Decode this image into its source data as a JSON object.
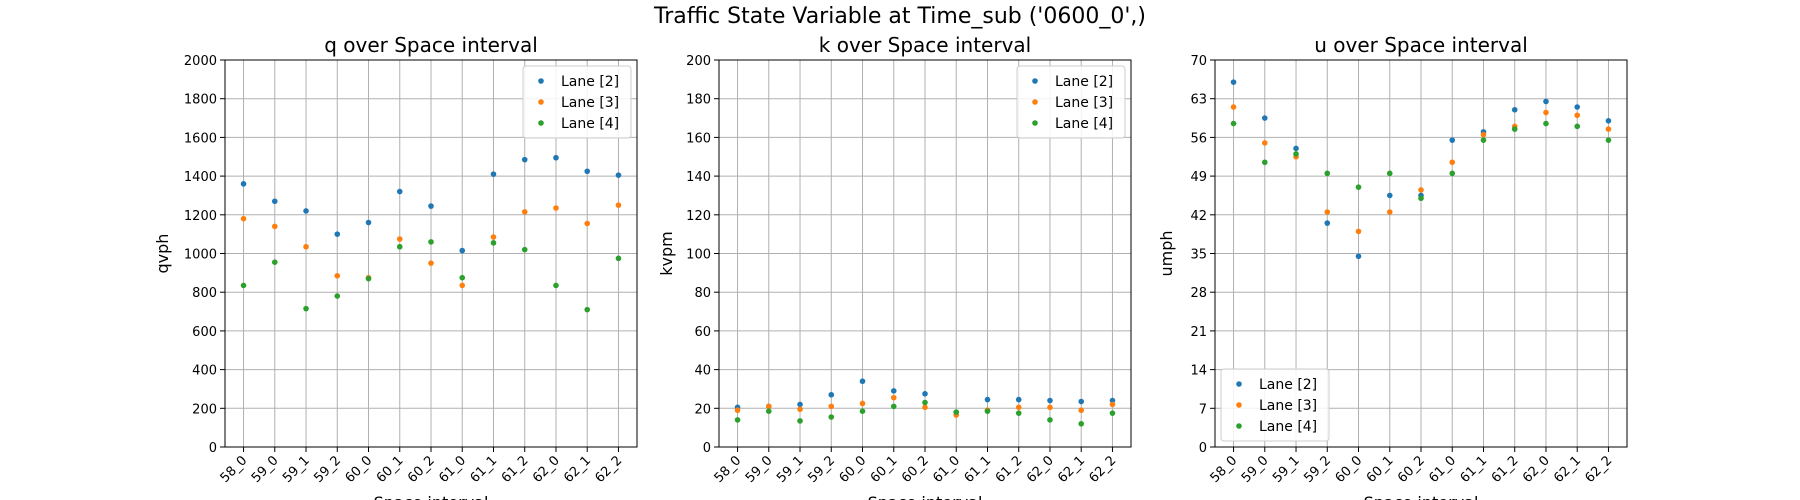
{
  "figure": {
    "suptitle": "Traffic State Variable at Time_sub ('0600_0',)"
  },
  "colors": {
    "lane2": "#1f77b4",
    "lane3": "#ff7f0e",
    "lane4": "#2ca02c",
    "grid": "#b0b0b0",
    "axis": "#000000"
  },
  "chart_data": [
    {
      "type": "scatter",
      "title": "q over Space interval",
      "xlabel": "Space interval",
      "ylabel": "qvph",
      "categories": [
        "58_0",
        "59_0",
        "59_1",
        "59_2",
        "60_0",
        "60_1",
        "60_2",
        "61_0",
        "61_1",
        "61_2",
        "62_0",
        "62_1",
        "62_2"
      ],
      "ylim": [
        0,
        2000
      ],
      "yticks": [
        0,
        200,
        400,
        600,
        800,
        1000,
        1200,
        1400,
        1600,
        1800,
        2000
      ],
      "grid": true,
      "legend_position": "upper right",
      "series": [
        {
          "name": "Lane [2]",
          "color": "#1f77b4",
          "values": [
            1360,
            1270,
            1220,
            1100,
            1160,
            1320,
            1245,
            1015,
            1410,
            1485,
            1495,
            1425,
            1405
          ]
        },
        {
          "name": "Lane [3]",
          "color": "#ff7f0e",
          "values": [
            1180,
            1140,
            1035,
            885,
            875,
            1075,
            950,
            835,
            1085,
            1215,
            1235,
            1155,
            1250
          ]
        },
        {
          "name": "Lane [4]",
          "color": "#2ca02c",
          "values": [
            835,
            955,
            715,
            780,
            870,
            1035,
            1060,
            875,
            1055,
            1020,
            835,
            710,
            975
          ]
        }
      ]
    },
    {
      "type": "scatter",
      "title": "k over Space interval",
      "xlabel": "Space interval",
      "ylabel": "kvpm",
      "categories": [
        "58_0",
        "59_0",
        "59_1",
        "59_2",
        "60_0",
        "60_1",
        "60_2",
        "61_0",
        "61_1",
        "61_2",
        "62_0",
        "62_1",
        "62_2"
      ],
      "ylim": [
        0,
        200
      ],
      "yticks": [
        0,
        20,
        40,
        60,
        80,
        100,
        120,
        140,
        160,
        180,
        200
      ],
      "grid": true,
      "legend_position": "upper right",
      "series": [
        {
          "name": "Lane [2]",
          "color": "#1f77b4",
          "values": [
            20.5,
            21,
            22,
            27,
            34,
            29,
            27.5,
            18,
            24.5,
            24.5,
            24,
            23.5,
            24
          ]
        },
        {
          "name": "Lane [3]",
          "color": "#ff7f0e",
          "values": [
            19,
            21,
            19.5,
            21,
            22.5,
            25.5,
            20.5,
            16.5,
            19,
            20.5,
            20.5,
            19,
            22
          ]
        },
        {
          "name": "Lane [4]",
          "color": "#2ca02c",
          "values": [
            14,
            18.5,
            13.5,
            15.5,
            18.5,
            21,
            23,
            18,
            18.5,
            17.5,
            14,
            12,
            17.5
          ]
        }
      ]
    },
    {
      "type": "scatter",
      "title": "u over Space interval",
      "xlabel": "Space interval",
      "ylabel": "umph",
      "categories": [
        "58_0",
        "59_0",
        "59_1",
        "59_2",
        "60_0",
        "60_1",
        "60_2",
        "61_0",
        "61_1",
        "61_2",
        "62_0",
        "62_1",
        "62_2"
      ],
      "ylim": [
        0,
        70
      ],
      "yticks": [
        0,
        7,
        14,
        21,
        28,
        35,
        42,
        49,
        56,
        63,
        70
      ],
      "grid": true,
      "legend_position": "lower left",
      "series": [
        {
          "name": "Lane [2]",
          "color": "#1f77b4",
          "values": [
            66,
            59.5,
            54,
            40.5,
            34.5,
            45.5,
            45.5,
            55.5,
            57,
            61,
            62.5,
            61.5,
            59
          ]
        },
        {
          "name": "Lane [3]",
          "color": "#ff7f0e",
          "values": [
            61.5,
            55,
            52.5,
            42.5,
            39,
            42.5,
            46.5,
            51.5,
            56.5,
            58,
            60.5,
            60,
            57.5
          ]
        },
        {
          "name": "Lane [4]",
          "color": "#2ca02c",
          "values": [
            58.5,
            51.5,
            53,
            49.5,
            47,
            49.5,
            45,
            49.5,
            55.5,
            57.5,
            58.5,
            58,
            55.5
          ]
        }
      ]
    }
  ]
}
